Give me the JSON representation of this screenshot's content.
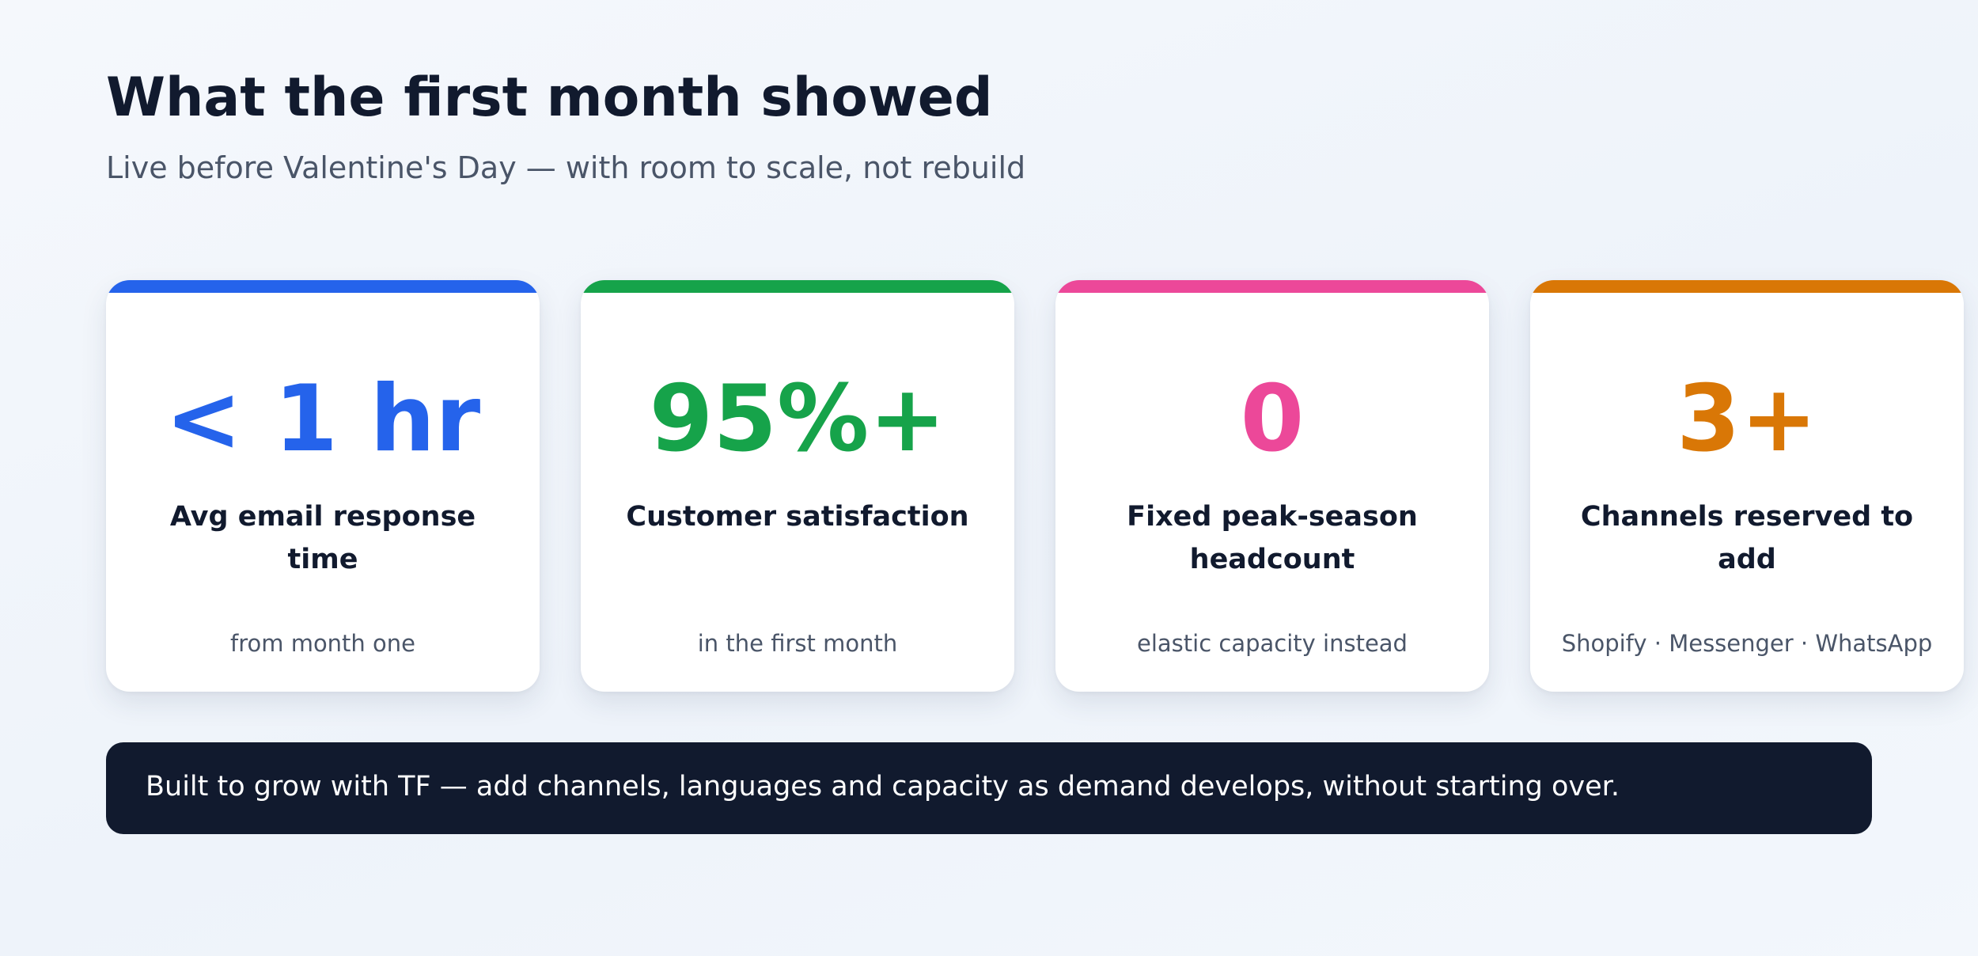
{
  "header": {
    "title": "What the first month showed",
    "subtitle": "Live before Valentine's Day — with room to scale, not rebuild"
  },
  "cards": [
    {
      "value": "< 1 hr",
      "label": "Avg email response time",
      "note": "from month one",
      "accent": "#2563eb"
    },
    {
      "value": "95%+",
      "label": "Customer satisfaction",
      "note": "in the first month",
      "accent": "#16a34a"
    },
    {
      "value": "0",
      "label": "Fixed peak-season headcount",
      "note": "elastic capacity instead",
      "accent": "#ec4899"
    },
    {
      "value": "3+",
      "label": "Channels reserved to add",
      "note": "Shopify · Messenger · WhatsApp",
      "accent": "#d97706"
    }
  ],
  "banner": {
    "text": "Built to grow with TF — add channels, languages and capacity as demand develops, without starting over."
  }
}
